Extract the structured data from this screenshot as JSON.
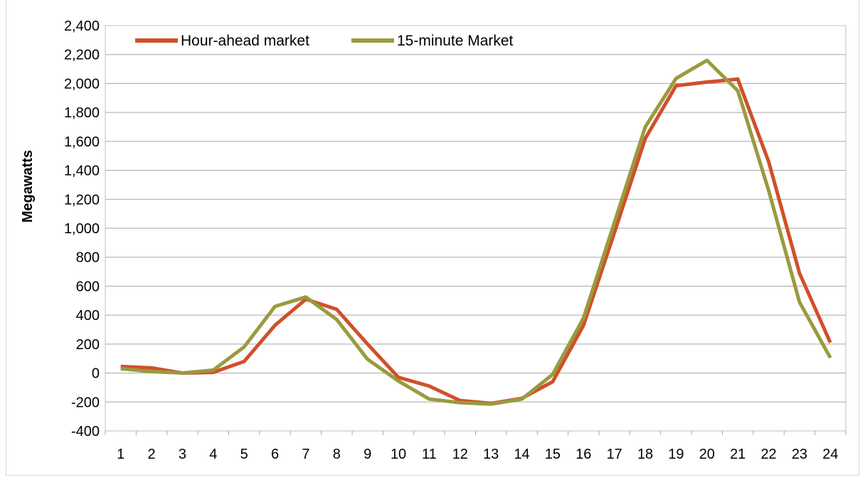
{
  "chart_data": {
    "type": "line",
    "title": "",
    "xlabel": "",
    "ylabel": "Megawatts",
    "ylim": [
      -400,
      2400
    ],
    "yticks": [
      -400,
      -200,
      0,
      200,
      400,
      600,
      800,
      1000,
      1200,
      1400,
      1600,
      1800,
      2000,
      2200,
      2400
    ],
    "ytick_labels": [
      "-400",
      "-200",
      "0",
      "200",
      "400",
      "600",
      "800",
      "1,000",
      "1,200",
      "1,400",
      "1,600",
      "1,800",
      "2,000",
      "2,200",
      "2,400"
    ],
    "grid": true,
    "legend": "top-left",
    "x": [
      1,
      2,
      3,
      4,
      5,
      6,
      7,
      8,
      9,
      10,
      11,
      12,
      13,
      14,
      15,
      16,
      17,
      18,
      19,
      20,
      21,
      22,
      23,
      24
    ],
    "x_labels": [
      "1",
      "2",
      "3",
      "4",
      "5",
      "6",
      "7",
      "8",
      "9",
      "10",
      "11",
      "12",
      "13",
      "14",
      "15",
      "16",
      "17",
      "18",
      "19",
      "20",
      "21",
      "22",
      "23",
      "24"
    ],
    "series": [
      {
        "name": "Hour-ahead market",
        "color": "#d0502a",
        "values": [
          45,
          35,
          0,
          5,
          80,
          330,
          510,
          440,
          200,
          -30,
          -90,
          -190,
          -210,
          -175,
          -60,
          330,
          970,
          1620,
          1985,
          2010,
          2030,
          1460,
          690,
          210
        ]
      },
      {
        "name": "15-minute Market",
        "color": "#9a9a3f",
        "values": [
          30,
          10,
          0,
          20,
          180,
          460,
          525,
          370,
          95,
          -55,
          -180,
          -205,
          -215,
          -180,
          -10,
          380,
          1040,
          1700,
          2035,
          2160,
          1950,
          1260,
          490,
          105
        ]
      }
    ]
  }
}
